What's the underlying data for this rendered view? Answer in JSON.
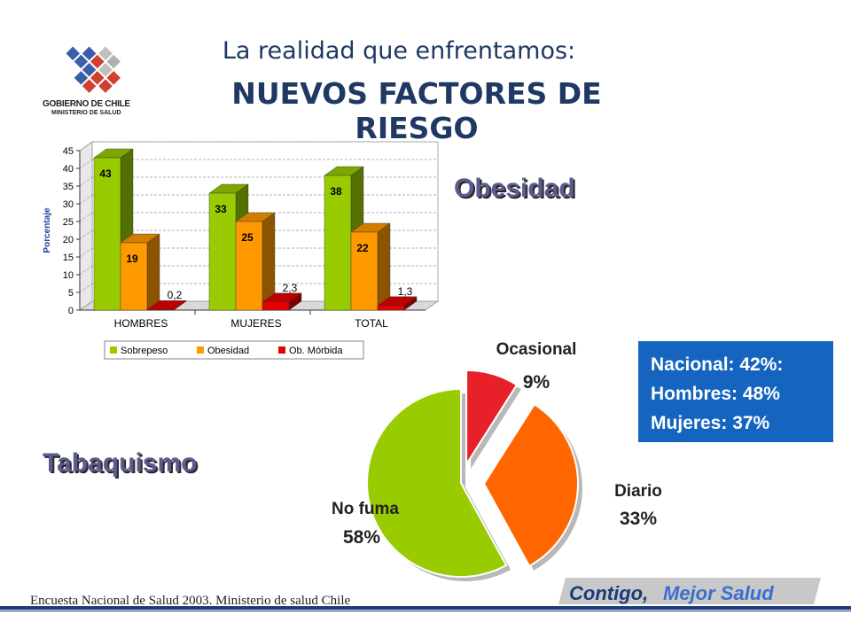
{
  "header": {
    "title_line1": "La realidad que enfrentamos:",
    "title_line2": "NUEVOS FACTORES DE RIESGO",
    "logo_line1": "GOBIERNO DE CHILE",
    "logo_line2": "MINISTERIO DE SALUD"
  },
  "sections": {
    "obesidad": "Obesidad",
    "tabaquismo": "Tabaquismo"
  },
  "infobox": {
    "line1": "Nacional: 42%:",
    "line2": "Hombres: 48%",
    "line3": "Mujeres: 37%"
  },
  "footer": {
    "source": "Encuesta Nacional de Salud 2003. Ministerio de salud Chile",
    "brand_part1": "Contigo,",
    "brand_part2": "Mejor Salud"
  },
  "colors": {
    "title": "#1f3864",
    "sobrepeso": "#99cc00",
    "obesidad": "#ff9900",
    "morbida": "#e60000",
    "ocasional": "#e8202a",
    "diario": "#ff6600",
    "nofuma": "#99cc00",
    "infobox": "#1565c0"
  },
  "chart_data": [
    {
      "type": "bar",
      "categories": [
        "HOMBRES",
        "MUJERES",
        "TOTAL"
      ],
      "series": [
        {
          "name": "Sobrepeso",
          "values": [
            43,
            33,
            38
          ],
          "labels": [
            "43",
            "33",
            "38"
          ]
        },
        {
          "name": "Obesidad",
          "values": [
            19,
            25,
            22
          ],
          "labels": [
            "19",
            "25",
            "22"
          ]
        },
        {
          "name": "Ob. Mórbida",
          "values": [
            0.2,
            2.3,
            1.3
          ],
          "labels": [
            "0,2",
            "2,3",
            "1,3"
          ]
        }
      ],
      "ylabel": "Porcentaje",
      "ylim": [
        0,
        45
      ],
      "yticks": [
        0,
        5,
        10,
        15,
        20,
        25,
        30,
        35,
        40,
        45
      ],
      "grid": true,
      "legend": "bottom"
    },
    {
      "type": "pie",
      "slices": [
        {
          "name": "Ocasional",
          "value": 9,
          "label": "9%"
        },
        {
          "name": "Diario",
          "value": 33,
          "label": "33%"
        },
        {
          "name": "No fuma",
          "value": 58,
          "label": "58%"
        }
      ]
    }
  ]
}
